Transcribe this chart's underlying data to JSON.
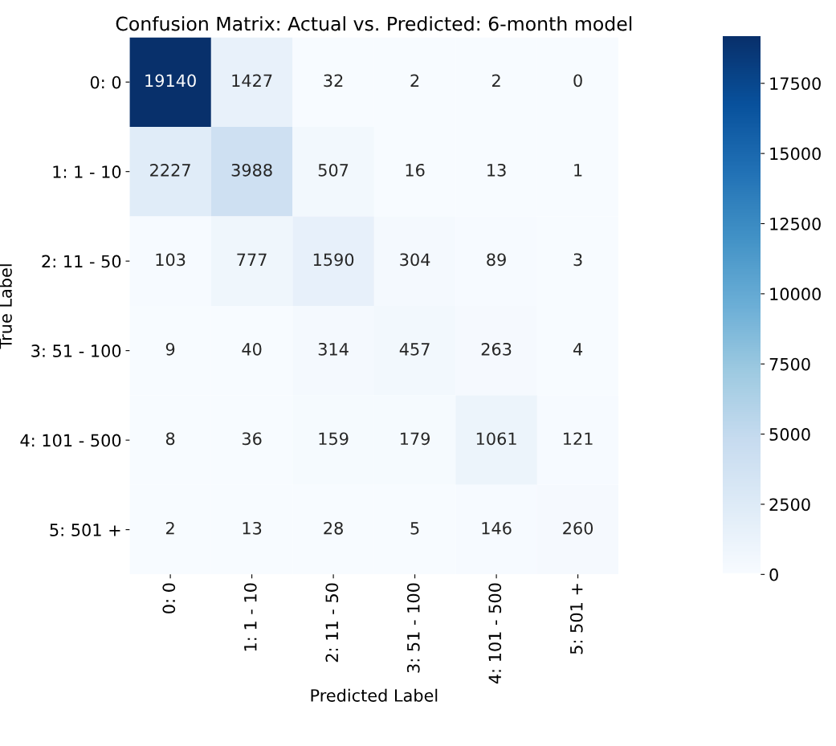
{
  "chart_data": {
    "type": "heatmap",
    "title": "Confusion Matrix: Actual vs. Predicted: 6-month model",
    "xlabel": "Predicted Label",
    "ylabel": "True Label",
    "categories": [
      "0: 0",
      "1: 1 - 10",
      "2: 11 - 50",
      "3: 51 - 100",
      "4: 101 - 500",
      "5: 501 +"
    ],
    "y_categories": [
      "0: 0",
      "1: 1 - 10",
      "2: 11 - 50",
      "3: 51 - 100",
      "4: 101 - 500",
      "5: 501 +"
    ],
    "cells": [
      [
        19140,
        1427,
        32,
        2,
        2,
        0
      ],
      [
        2227,
        3988,
        507,
        16,
        13,
        1
      ],
      [
        103,
        777,
        1590,
        304,
        89,
        3
      ],
      [
        9,
        40,
        314,
        457,
        263,
        4
      ],
      [
        8,
        36,
        159,
        179,
        1061,
        121
      ],
      [
        2,
        13,
        28,
        5,
        146,
        260
      ]
    ],
    "clim": [
      0,
      19140
    ],
    "cticks": [
      0,
      2500,
      5000,
      7500,
      10000,
      12500,
      15000,
      17500
    ],
    "data_labels": true
  }
}
